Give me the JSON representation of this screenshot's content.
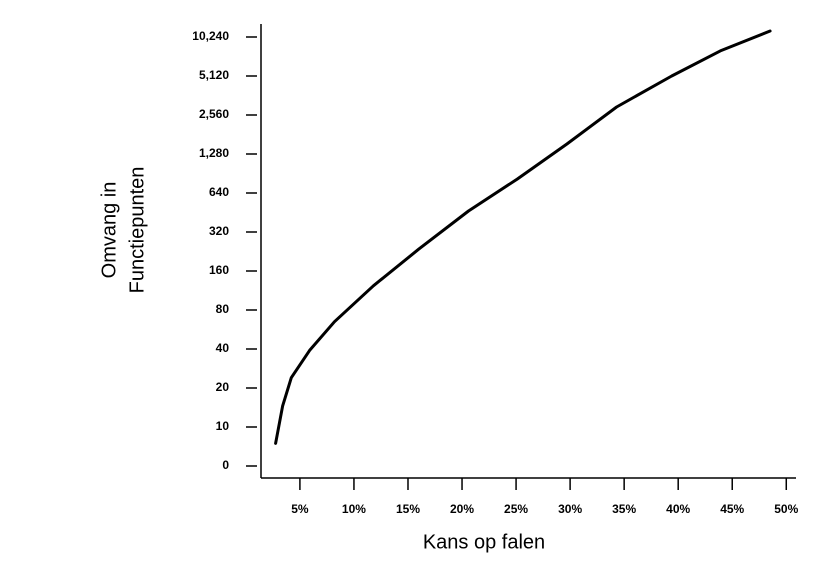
{
  "chart_data": {
    "type": "line",
    "xlabel": "Kans op falen",
    "ylabel": [
      "Omvang in",
      "Functiepunten"
    ],
    "x": [
      2.75,
      3.4,
      4.2,
      5.9,
      8.2,
      11.8,
      16.0,
      20.6,
      25.1,
      29.7,
      34.3,
      39.4,
      43.9,
      48.5
    ],
    "series": [
      {
        "color": "#000000",
        "values": [
          5.8,
          14.5,
          24,
          39,
          65,
          123,
          236,
          465,
          820,
          1530,
          2950,
          5120,
          8000,
          11400
        ]
      }
    ],
    "xlim": [
      1.4,
      50.9
    ],
    "xticks": [
      {
        "value": 5,
        "label": "5%"
      },
      {
        "value": 10,
        "label": "10%"
      },
      {
        "value": 15,
        "label": "15%"
      },
      {
        "value": 20,
        "label": "20%"
      },
      {
        "value": 25,
        "label": "25%"
      },
      {
        "value": 30,
        "label": "30%"
      },
      {
        "value": 35,
        "label": "35%"
      },
      {
        "value": 40,
        "label": "40%"
      },
      {
        "value": 45,
        "label": "45%"
      },
      {
        "value": 50,
        "label": "50%"
      }
    ],
    "yscale": "log2-stepped",
    "yticks": [
      0,
      10,
      20,
      40,
      80,
      160,
      320,
      640,
      {
        "value": 1280,
        "label": "1,280"
      },
      {
        "value": 2560,
        "label": "2,560"
      },
      {
        "value": 5120,
        "label": "5,120"
      },
      {
        "value": 10240,
        "label": "10,240"
      }
    ],
    "grid": false
  }
}
